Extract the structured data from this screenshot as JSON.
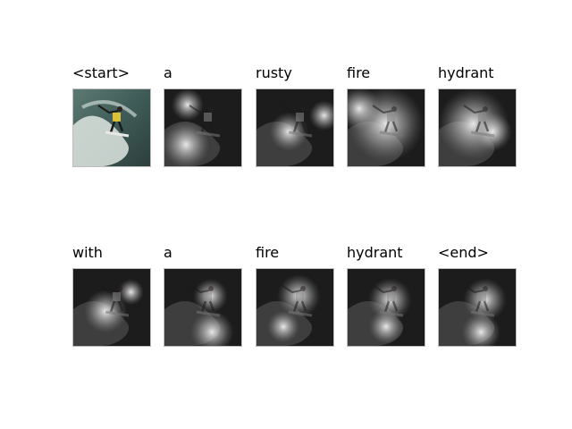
{
  "panels": [
    {
      "word": "<start>",
      "style": "original",
      "glow": []
    },
    {
      "word": "a",
      "style": "attention",
      "glow": [
        [
          0.28,
          0.72,
          0.22
        ],
        [
          0.3,
          0.2,
          0.15
        ]
      ]
    },
    {
      "word": "rusty",
      "style": "attention",
      "glow": [
        [
          0.88,
          0.34,
          0.14
        ],
        [
          0.42,
          0.55,
          0.18
        ]
      ]
    },
    {
      "word": "fire",
      "style": "attention",
      "glow": [
        [
          0.5,
          0.45,
          0.35
        ],
        [
          0.15,
          0.25,
          0.2
        ]
      ]
    },
    {
      "word": "hydrant",
      "style": "attention",
      "glow": [
        [
          0.45,
          0.45,
          0.33
        ],
        [
          0.7,
          0.55,
          0.18
        ]
      ]
    },
    {
      "word": "with",
      "style": "attention",
      "glow": [
        [
          0.42,
          0.55,
          0.2
        ],
        [
          0.75,
          0.3,
          0.12
        ]
      ]
    },
    {
      "word": "a",
      "style": "attention",
      "glow": [
        [
          0.6,
          0.35,
          0.16
        ],
        [
          0.62,
          0.82,
          0.2
        ]
      ]
    },
    {
      "word": "fire",
      "style": "attention",
      "glow": [
        [
          0.55,
          0.35,
          0.2
        ],
        [
          0.35,
          0.75,
          0.15
        ]
      ]
    },
    {
      "word": "hydrant",
      "style": "attention",
      "glow": [
        [
          0.55,
          0.4,
          0.2
        ],
        [
          0.5,
          0.75,
          0.16
        ]
      ]
    },
    {
      "word": "<end>",
      "style": "attention",
      "glow": [
        [
          0.6,
          0.4,
          0.2
        ],
        [
          0.55,
          0.82,
          0.18
        ]
      ]
    }
  ]
}
